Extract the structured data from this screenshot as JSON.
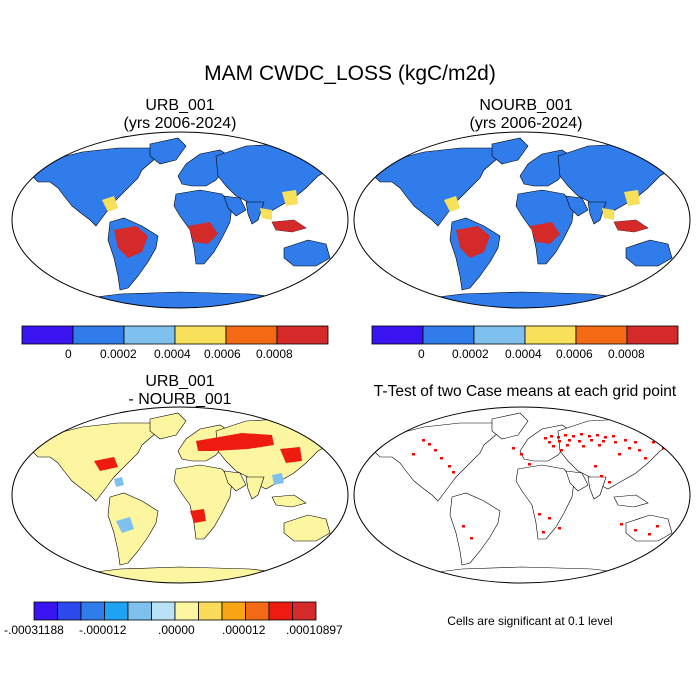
{
  "title": "MAM CWDC_LOSS (kgC/m2d)",
  "panels": [
    {
      "line1": "URB_001",
      "line2": "(yrs 2006-2024)"
    },
    {
      "line1": "NOURB_001",
      "line2": "(yrs 2006-2024)"
    },
    {
      "line1": "URB_001",
      "line2": "- NOURB_001"
    },
    {
      "line1": "T-Test of two Case means at each grid point",
      "line2": ""
    }
  ],
  "colorbar_top": {
    "colors": [
      "#3a14f0",
      "#2f7cea",
      "#7ec1ee",
      "#f7e15a",
      "#f46a14",
      "#d42a2a"
    ],
    "labels": [
      "0",
      "0.0002",
      "0.0004",
      "0.0006",
      "0.0008"
    ]
  },
  "colorbar_diff": {
    "colors": [
      "#3a14f0",
      "#2b49ec",
      "#2f7cea",
      "#1ea3f4",
      "#7ec1ee",
      "#b8e2f6",
      "#fdf6a0",
      "#fadc5a",
      "#f9a516",
      "#f46a14",
      "#ee1c10",
      "#d42a2a"
    ],
    "labels": [
      "-.00031188",
      "-.000012",
      ".00000",
      ".000012",
      ".00010897"
    ]
  },
  "map_colors": {
    "ocean": "#ffffff",
    "land_base": "#2f7cea",
    "tropical_high": "#d42a2a",
    "moderate": "#f7e15a",
    "diff_base": "#fdf6a0",
    "diff_pos": "#ee1c10",
    "diff_neg": "#7ec1ee",
    "significant": "#ff0000"
  },
  "significance_note": "Cells are significant at 0.1 level"
}
